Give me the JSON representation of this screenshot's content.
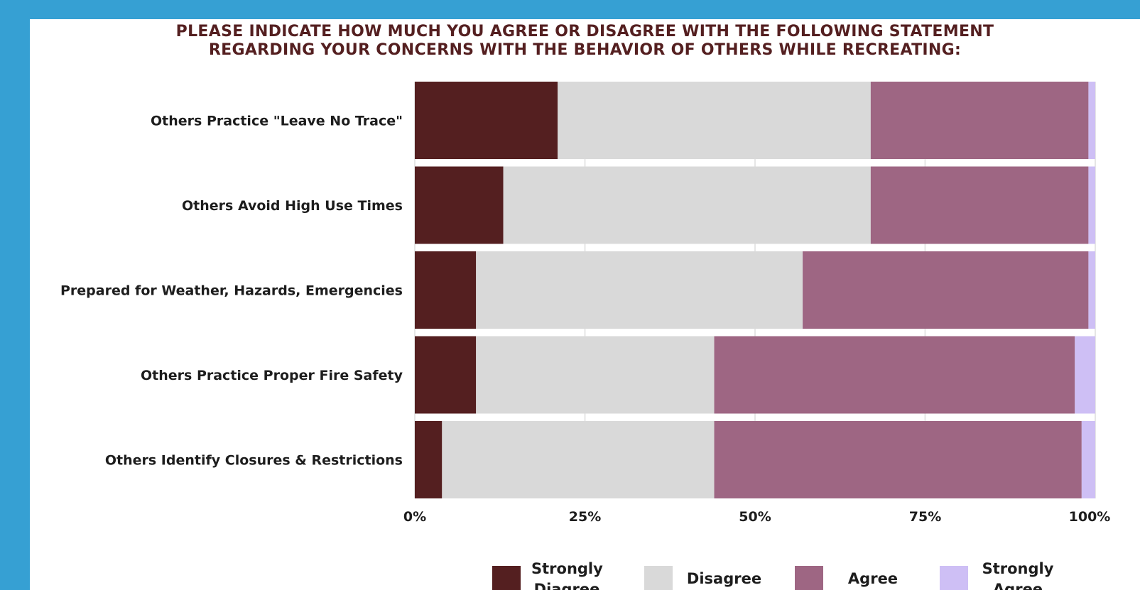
{
  "chart_data": {
    "type": "bar",
    "orientation": "horizontal",
    "stacked": true,
    "title": "PLEASE INDICATE HOW MUCH YOU AGREE OR DISAGREE WITH THE FOLLOWING STATEMENT REGARDING YOUR CONCERNS WITH THE BEHAVIOR OF OTHERS WHILE RECREATING:",
    "title_lines": [
      "PLEASE INDICATE HOW MUCH YOU AGREE OR DISAGREE WITH THE FOLLOWING STATEMENT",
      "REGARDING YOUR CONCERNS WITH THE BEHAVIOR OF OTHERS WHILE RECREATING:"
    ],
    "categories": [
      "Others Practice \"Leave No Trace\"",
      "Others Avoid High Use Times",
      "Prepared for Weather, Hazards, Emergencies",
      "Others Practice Proper Fire Safety",
      "Others Identify Closures & Restrictions"
    ],
    "series": [
      {
        "name": "Strongly Diagree",
        "color": "#541f20",
        "values": [
          21,
          13,
          9,
          9,
          4
        ]
      },
      {
        "name": "Disagree",
        "color": "#d9d9d9",
        "values": [
          46,
          54,
          48,
          35,
          40
        ]
      },
      {
        "name": "Agree",
        "color": "#9e6683",
        "values": [
          32,
          32,
          42,
          53,
          54
        ]
      },
      {
        "name": "Strongly Agree",
        "color": "#cebff5",
        "values": [
          1,
          1,
          1,
          3,
          2
        ]
      }
    ],
    "xticks": [
      "0%",
      "25%",
      "50%",
      "75%",
      "100%"
    ],
    "xlim": [
      0,
      100
    ],
    "grid": true,
    "legend_position": "bottom",
    "legend_labels": [
      "Strongly\nDiagree",
      "Disagree",
      "Agree",
      "Strongly\nAgree"
    ]
  }
}
